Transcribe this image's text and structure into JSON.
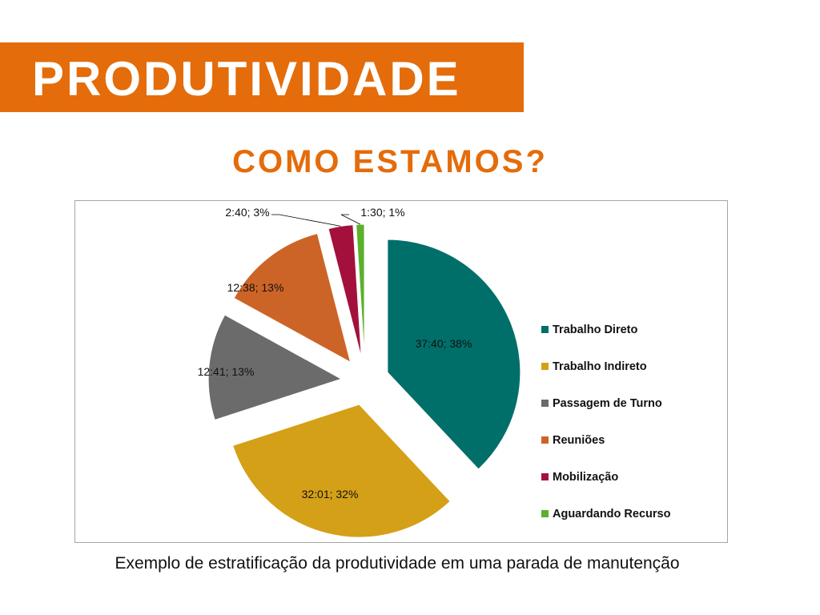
{
  "header": {
    "title": "PRODUTIVIDADE"
  },
  "subtitle": "COMO ESTAMOS?",
  "caption": "Exemplo de estratificação da produtividade em uma parada de manutenção",
  "chart_data": {
    "type": "pie",
    "title": "",
    "legend": "right",
    "slices": [
      {
        "name": "Trabalho Direto",
        "label": "37:40; 38%",
        "time": "37:40",
        "percent": 38,
        "color": "#006f6a"
      },
      {
        "name": "Trabalho Indireto",
        "label": "32:01; 32%",
        "time": "32:01",
        "percent": 32,
        "color": "#d4a017"
      },
      {
        "name": "Passagem de Turno",
        "label": "12:41; 13%",
        "time": "12:41",
        "percent": 13,
        "color": "#6b6b6b"
      },
      {
        "name": "Reuniões",
        "label": "12:38; 13%",
        "time": "12:38",
        "percent": 13,
        "color": "#cd6427"
      },
      {
        "name": "Mobilização",
        "label": "2:40; 3%",
        "time": "2:40",
        "percent": 3,
        "color": "#a3103c"
      },
      {
        "name": "Aguardando Recurso",
        "label": "1:30; 1%",
        "time": "1:30",
        "percent": 1,
        "color": "#5bb02c"
      }
    ]
  }
}
